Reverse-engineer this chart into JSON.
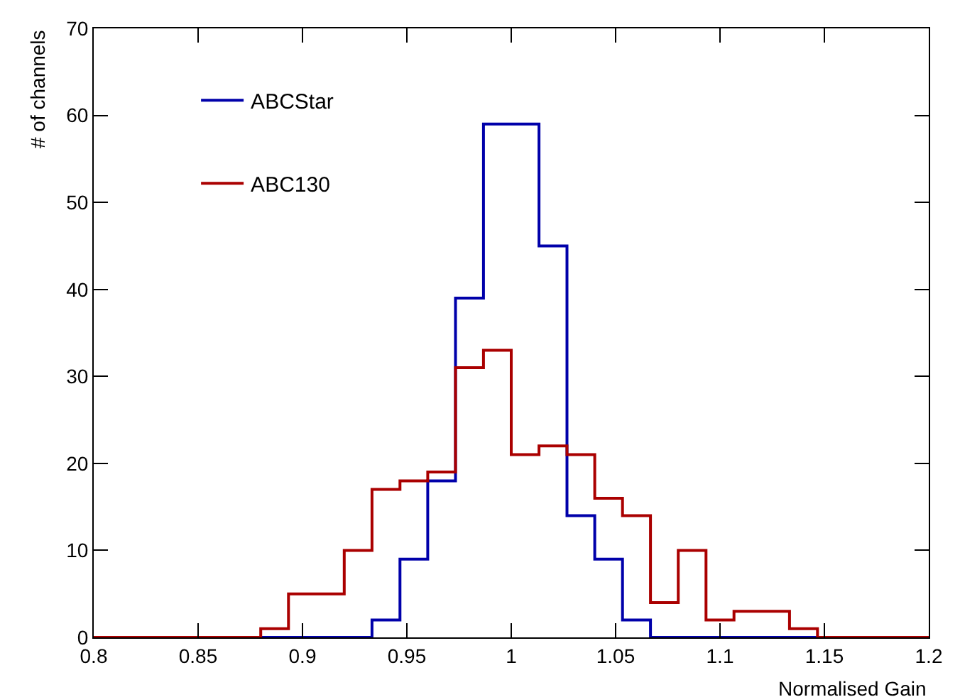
{
  "chart_data": {
    "type": "histogram",
    "xlabel": "Normalised Gain",
    "ylabel": "# of channels",
    "bins": [
      0.8,
      0.8133,
      0.8267,
      0.84,
      0.8533,
      0.8667,
      0.88,
      0.8933,
      0.9067,
      0.92,
      0.9333,
      0.9467,
      0.96,
      0.9733,
      0.9867,
      1.0,
      1.0133,
      1.0267,
      1.04,
      1.0533,
      1.0667,
      1.08,
      1.0933,
      1.1067,
      1.12,
      1.1333,
      1.1467,
      1.16,
      1.1733,
      1.1867,
      1.2
    ],
    "series": [
      {
        "name": "ABCStar",
        "color": "#0000aa",
        "values": [
          0,
          0,
          0,
          0,
          0,
          0,
          0,
          0,
          0,
          0,
          2,
          9,
          18,
          39,
          59,
          59,
          45,
          14,
          9,
          2,
          0,
          0,
          0,
          0,
          0,
          0,
          0,
          0,
          0,
          0
        ]
      },
      {
        "name": "ABC130",
        "color": "#aa0000",
        "values": [
          0,
          0,
          0,
          0,
          0,
          0,
          1,
          5,
          5,
          10,
          17,
          18,
          19,
          31,
          33,
          21,
          22,
          21,
          16,
          14,
          4,
          10,
          2,
          3,
          3,
          1,
          0,
          0,
          0,
          0
        ]
      }
    ],
    "xlim": [
      0.8,
      1.2
    ],
    "xticks": [
      0.8,
      0.85,
      0.9,
      0.95,
      1,
      1.05,
      1.1,
      1.15,
      1.2
    ],
    "ylim": [
      0,
      70
    ],
    "yticks": [
      0,
      10,
      20,
      30,
      40,
      50,
      60,
      70
    ],
    "legend": "top left"
  }
}
